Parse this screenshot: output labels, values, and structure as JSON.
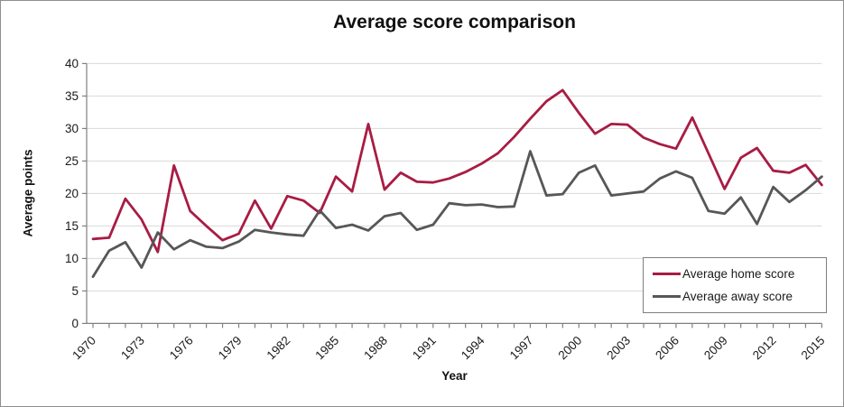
{
  "chart_data": {
    "type": "line",
    "title": "Average score comparison",
    "xlabel": "Year",
    "ylabel": "Average points",
    "ylim": [
      0,
      40
    ],
    "y_ticks": [
      0,
      5,
      10,
      15,
      20,
      25,
      30,
      35,
      40
    ],
    "x": [
      1970,
      1971,
      1972,
      1973,
      1974,
      1975,
      1976,
      1977,
      1978,
      1979,
      1980,
      1981,
      1982,
      1983,
      1984,
      1985,
      1986,
      1987,
      1988,
      1989,
      1990,
      1991,
      1992,
      1993,
      1994,
      1995,
      1996,
      1997,
      1998,
      1999,
      2000,
      2001,
      2002,
      2003,
      2004,
      2005,
      2006,
      2007,
      2008,
      2009,
      2010,
      2011,
      2012,
      2013,
      2014,
      2015
    ],
    "x_tick_labels": [
      "1970",
      "1973",
      "1976",
      "1979",
      "1982",
      "1985",
      "1988",
      "1991",
      "1994",
      "1997",
      "2000",
      "2003",
      "2006",
      "2009",
      "2012",
      "2015"
    ],
    "grid": "horizontal",
    "grid_color": "#d9d9d9",
    "axis_color": "#808080",
    "tick_label_color": "#1a1a1a",
    "legend_position": "inside-bottom-right",
    "series": [
      {
        "name": "Average home score",
        "color": "#a81c43",
        "values": [
          13.0,
          13.2,
          19.2,
          16.0,
          11.0,
          24.3,
          17.3,
          15.0,
          12.8,
          13.8,
          18.9,
          14.6,
          19.6,
          18.9,
          17.0,
          22.6,
          20.3,
          30.7,
          20.6,
          23.2,
          21.8,
          21.7,
          22.3,
          23.3,
          24.6,
          26.2,
          28.7,
          31.5,
          34.2,
          35.9,
          32.4,
          29.2,
          30.7,
          30.6,
          28.6,
          27.6,
          26.9,
          31.7,
          26.2,
          20.7,
          25.5,
          27.0,
          23.5,
          23.2,
          24.4,
          21.3
        ]
      },
      {
        "name": "Average away score",
        "color": "#575757",
        "values": [
          7.2,
          11.2,
          12.5,
          8.6,
          14.0,
          11.4,
          12.8,
          11.8,
          11.6,
          12.6,
          14.4,
          14.0,
          13.7,
          13.5,
          17.4,
          14.7,
          15.2,
          14.3,
          16.5,
          17.0,
          14.4,
          15.2,
          18.5,
          18.2,
          18.3,
          17.9,
          18.0,
          26.5,
          19.7,
          19.9,
          23.2,
          24.3,
          19.7,
          20.0,
          20.3,
          22.3,
          23.4,
          22.4,
          17.3,
          16.9,
          19.4,
          15.3,
          21.0,
          18.7,
          20.5,
          22.6
        ]
      }
    ]
  }
}
